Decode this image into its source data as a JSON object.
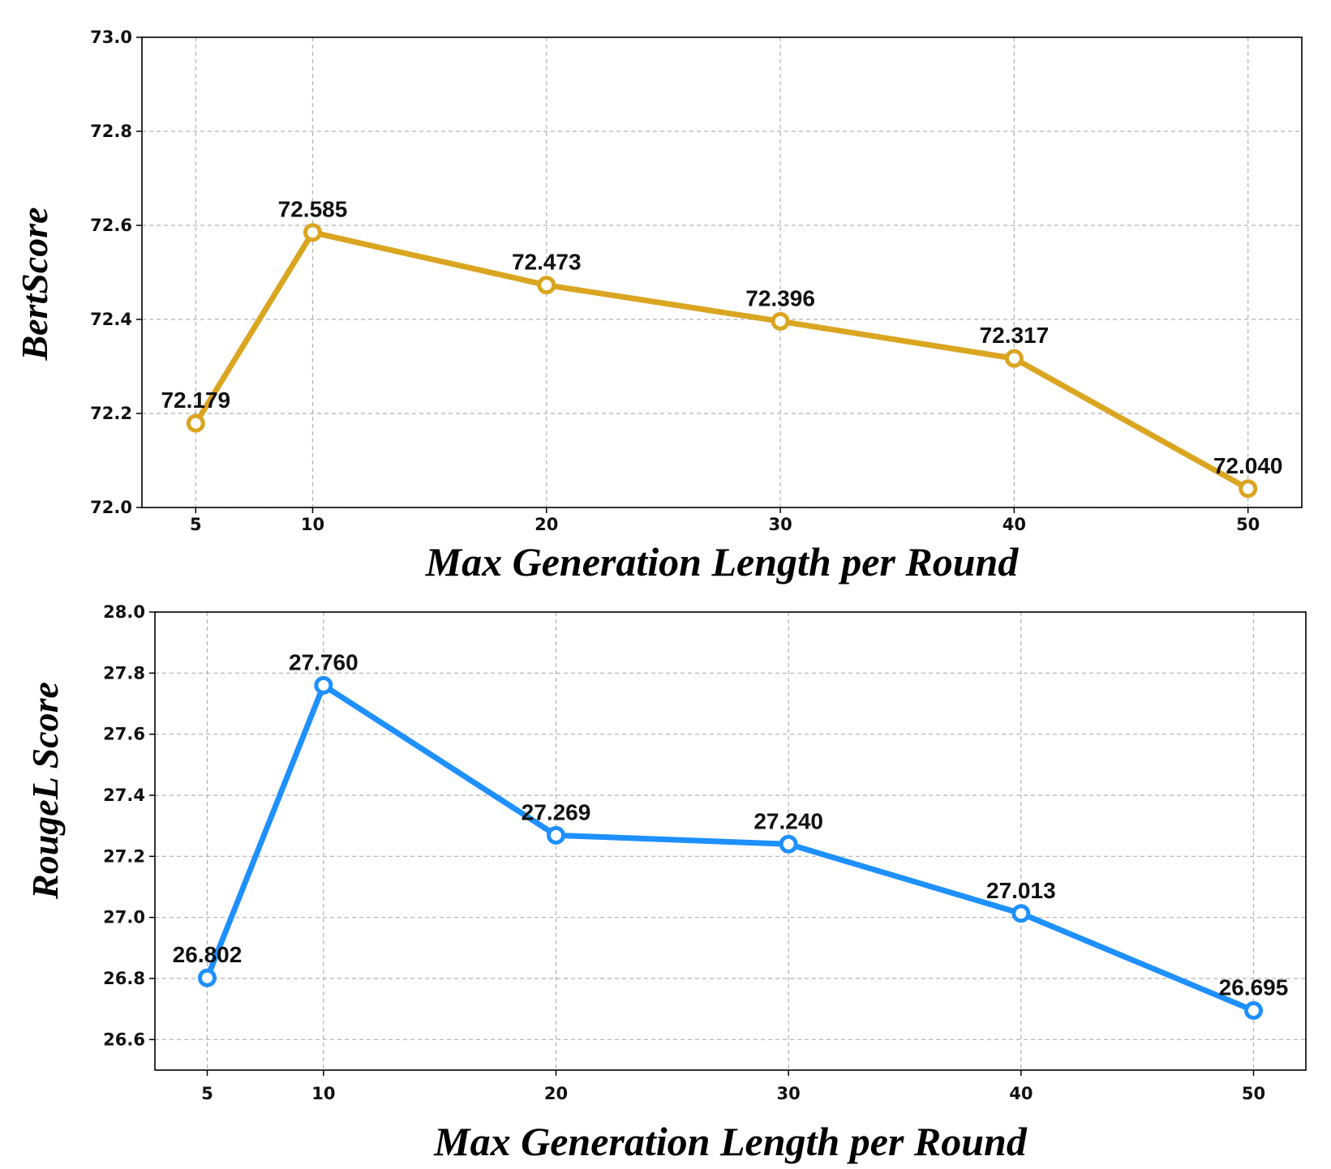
{
  "chart_data": [
    {
      "type": "line",
      "xlabel": "Max Generation Length per Round",
      "ylabel": "BertScore",
      "x": [
        5,
        10,
        20,
        30,
        40,
        50
      ],
      "xticks": [
        "5",
        "10",
        "20",
        "30",
        "40",
        "50"
      ],
      "xlim": [
        2.7,
        52.3
      ],
      "ylim": [
        72.0,
        73.0
      ],
      "yticks": [
        "72.0",
        "72.2",
        "72.4",
        "72.6",
        "72.8",
        "73.0"
      ],
      "grid": true,
      "series": [
        {
          "values": [
            72.179,
            72.585,
            72.473,
            72.396,
            72.317,
            72.04
          ],
          "labels": [
            "72.179",
            "72.585",
            "72.473",
            "72.396",
            "72.317",
            "72.040"
          ],
          "color": "#DAA520"
        }
      ]
    },
    {
      "type": "line",
      "xlabel": "Max Generation Length per Round",
      "ylabel": "RougeL Score",
      "x": [
        5,
        10,
        20,
        30,
        40,
        50
      ],
      "xticks": [
        "5",
        "10",
        "20",
        "30",
        "40",
        "50"
      ],
      "xlim": [
        2.75,
        52.25
      ],
      "ylim": [
        26.5,
        28.0
      ],
      "yticks": [
        "26.6",
        "26.8",
        "27.0",
        "27.2",
        "27.4",
        "27.6",
        "27.8",
        "28.0"
      ],
      "grid": true,
      "series": [
        {
          "values": [
            26.802,
            27.76,
            27.269,
            27.24,
            27.013,
            26.695
          ],
          "labels": [
            "26.802",
            "27.760",
            "27.269",
            "27.240",
            "27.013",
            "26.695"
          ],
          "color": "#1E90FF"
        }
      ]
    }
  ]
}
